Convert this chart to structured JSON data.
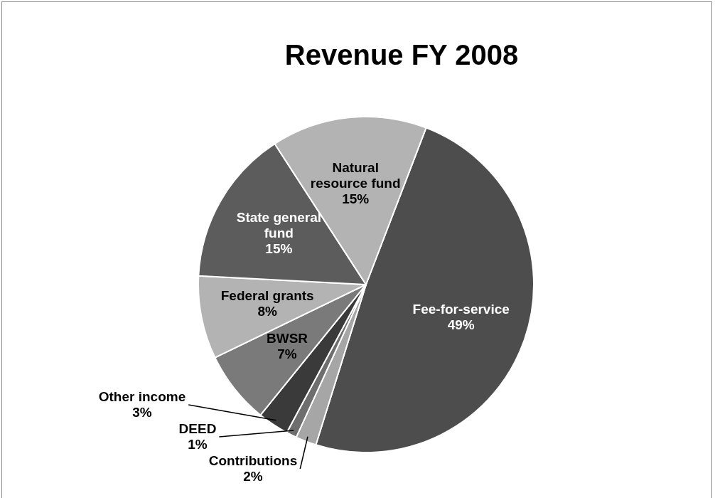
{
  "chart_data": {
    "type": "pie",
    "title": "Revenue FY 2008",
    "categories": [
      "Fee-for-service",
      "Contributions",
      "DEED",
      "Other income",
      "BWSR",
      "Federal grants",
      "State general fund",
      "Natural resource fund"
    ],
    "values": [
      49,
      2,
      1,
      3,
      7,
      8,
      15,
      15
    ],
    "value_labels": [
      "49%",
      "2%",
      "1%",
      "3%",
      "7%",
      "8%",
      "15%",
      "15%"
    ],
    "colors": [
      "#4d4d4d",
      "#a6a6a6",
      "#6e6e6e",
      "#3a3a3a",
      "#7a7a7a",
      "#b3b3b3",
      "#5c5c5c",
      "#b3b3b3"
    ],
    "legend": false
  }
}
